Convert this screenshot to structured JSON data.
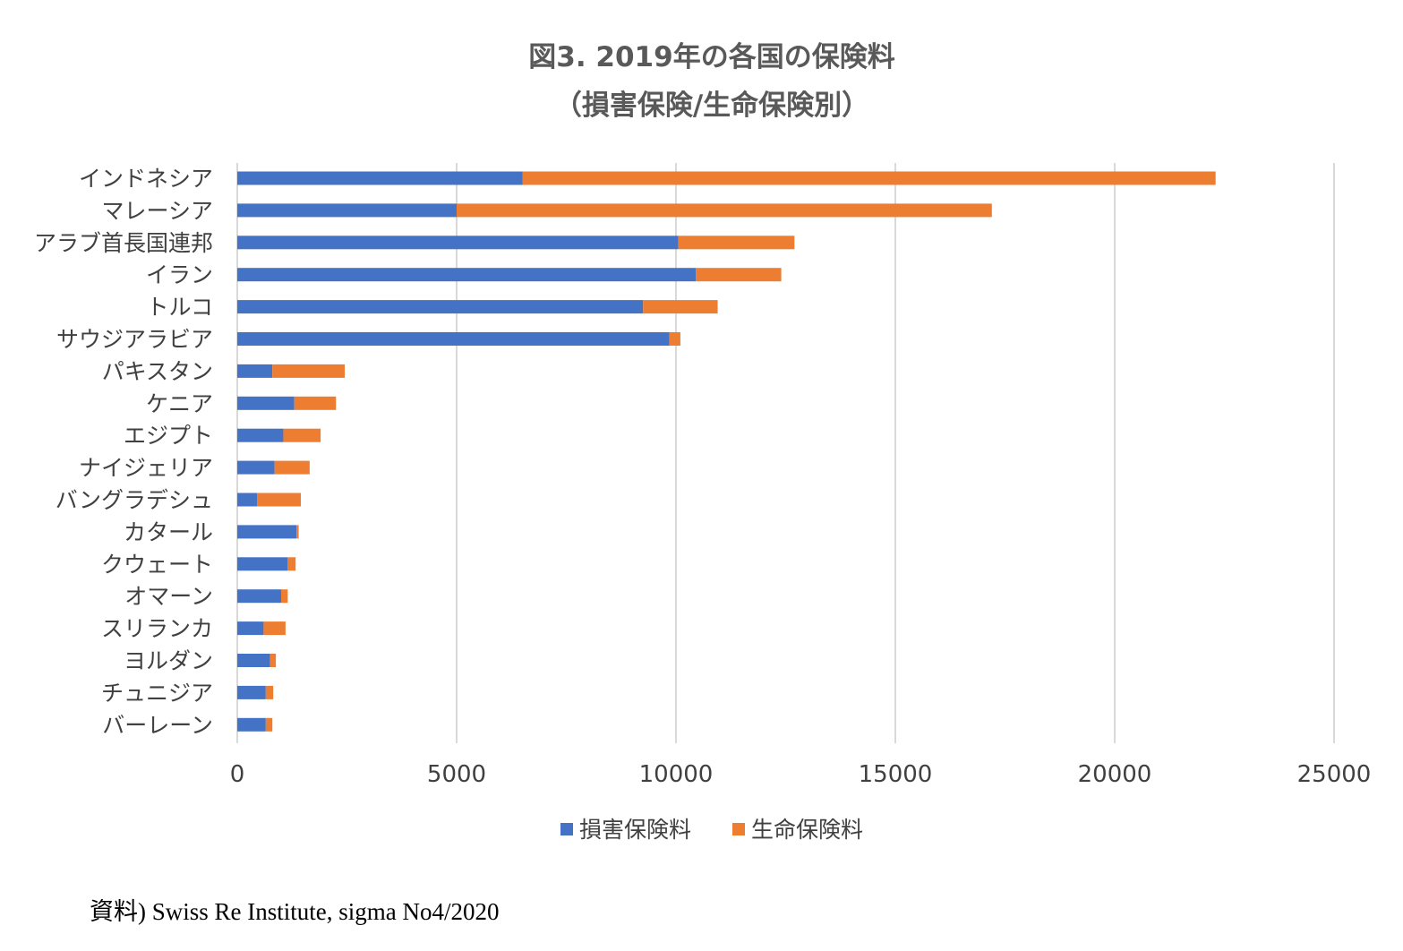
{
  "chart_data": {
    "type": "bar",
    "orientation": "horizontal",
    "stacked": true,
    "title": "図3. 2019年の各国の保険料",
    "subtitle": "（損害保険/生命保険別）",
    "xlim": [
      0,
      25000
    ],
    "xticks": [
      0,
      5000,
      10000,
      15000,
      20000,
      25000
    ],
    "grid": true,
    "legend_position": "bottom",
    "categories": [
      "インドネシア",
      "マレーシア",
      "アラブ首長国連邦",
      "イラン",
      "トルコ",
      "サウジアラビア",
      "パキスタン",
      "ケニア",
      "エジプト",
      "ナイジェリア",
      "バングラデシュ",
      "カタール",
      "クウェート",
      "オマーン",
      "スリランカ",
      "ヨルダン",
      "チュニジア",
      "バーレーン"
    ],
    "series": [
      {
        "name": "損害保険料",
        "color": "#4472C4",
        "values": [
          6500,
          5000,
          10050,
          10450,
          9250,
          9850,
          800,
          1300,
          1050,
          850,
          450,
          1350,
          1150,
          1000,
          600,
          750,
          650,
          650
        ]
      },
      {
        "name": "生命保険料",
        "color": "#ED7D31",
        "values": [
          15800,
          12200,
          2650,
          1950,
          1700,
          250,
          1650,
          950,
          850,
          800,
          1000,
          50,
          180,
          150,
          500,
          130,
          170,
          150
        ]
      }
    ]
  },
  "source_note": "資料) Swiss Re Institute, sigma No4/2020"
}
